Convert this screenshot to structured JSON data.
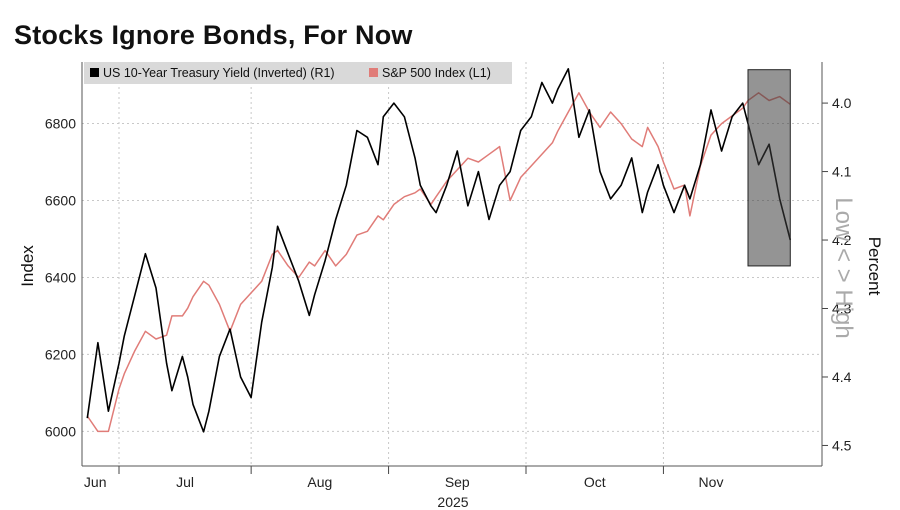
{
  "chart_data": {
    "type": "line",
    "title": "Stocks Ignore Bonds, For Now",
    "x_labels": [
      "Jun",
      "Jul",
      "Aug",
      "Sep",
      "Oct",
      "Nov"
    ],
    "x_year": "2025",
    "left_axis": {
      "label": "Index",
      "ticks": [
        6000,
        6200,
        6400,
        6600,
        6800
      ],
      "range": [
        5910,
        6960
      ]
    },
    "right_axis": {
      "label": "Percent",
      "ticks": [
        4.0,
        4.1,
        4.2,
        4.3,
        4.4,
        4.5
      ],
      "range": [
        3.94,
        4.53
      ],
      "inverted": true
    },
    "annotation": "Low < > High",
    "grid": true,
    "legend_position": "top-left",
    "highlight_box": {
      "x_range": [
        125,
        133
      ],
      "left_value_range": [
        6430,
        6940
      ]
    },
    "series": [
      {
        "name": "US 10-Year Treasury Yield (Inverted) (R1)",
        "color": "#000000",
        "axis": "right",
        "x": [
          0,
          2,
          4,
          6,
          7,
          9,
          11,
          13,
          15,
          16,
          18,
          19,
          20,
          22,
          23,
          25,
          27,
          29,
          31,
          33,
          35,
          36,
          38,
          40,
          42,
          43,
          45,
          47,
          49,
          51,
          53,
          55,
          56,
          58,
          60,
          62,
          63,
          65,
          66,
          68,
          70,
          72,
          74,
          76,
          78,
          80,
          82,
          84,
          86,
          88,
          89,
          91,
          93,
          95,
          97,
          99,
          101,
          103,
          105,
          106,
          108,
          109,
          111,
          113,
          114,
          116,
          118,
          120,
          122,
          124,
          125,
          127,
          129,
          131,
          133
        ],
        "y": [
          4.46,
          4.35,
          4.45,
          4.38,
          4.34,
          4.28,
          4.22,
          4.27,
          4.38,
          4.42,
          4.37,
          4.4,
          4.44,
          4.48,
          4.45,
          4.37,
          4.33,
          4.4,
          4.43,
          4.32,
          4.24,
          4.18,
          4.22,
          4.26,
          4.31,
          4.28,
          4.23,
          4.17,
          4.12,
          4.04,
          4.05,
          4.09,
          4.02,
          4.0,
          4.02,
          4.08,
          4.12,
          4.15,
          4.16,
          4.12,
          4.07,
          4.15,
          4.1,
          4.17,
          4.12,
          4.1,
          4.04,
          4.02,
          3.97,
          4.0,
          3.98,
          3.95,
          4.05,
          4.01,
          4.1,
          4.14,
          4.12,
          4.08,
          4.16,
          4.13,
          4.09,
          4.12,
          4.16,
          4.12,
          4.14,
          4.09,
          4.01,
          4.07,
          4.02,
          4.0,
          4.03,
          4.09,
          4.06,
          4.14,
          4.2
        ]
      },
      {
        "name": "S&P 500 Index (L1)",
        "color": "#e07c78",
        "axis": "left",
        "x": [
          0,
          2,
          4,
          6,
          7,
          9,
          11,
          13,
          15,
          16,
          18,
          19,
          20,
          22,
          23,
          25,
          27,
          29,
          31,
          33,
          35,
          36,
          38,
          40,
          42,
          43,
          45,
          47,
          49,
          51,
          53,
          55,
          56,
          58,
          60,
          62,
          63,
          65,
          66,
          68,
          70,
          72,
          74,
          76,
          78,
          80,
          82,
          84,
          86,
          88,
          89,
          91,
          93,
          95,
          97,
          99,
          101,
          103,
          105,
          106,
          108,
          109,
          111,
          113,
          114,
          116,
          118,
          120,
          122,
          124,
          125,
          127,
          129,
          131,
          133
        ],
        "y": [
          6040,
          6000,
          6000,
          6110,
          6150,
          6210,
          6260,
          6240,
          6250,
          6300,
          6300,
          6320,
          6350,
          6390,
          6380,
          6330,
          6260,
          6330,
          6360,
          6390,
          6460,
          6470,
          6430,
          6400,
          6440,
          6430,
          6470,
          6430,
          6460,
          6510,
          6520,
          6560,
          6550,
          6590,
          6610,
          6620,
          6630,
          6590,
          6610,
          6650,
          6680,
          6710,
          6700,
          6720,
          6740,
          6600,
          6660,
          6690,
          6720,
          6750,
          6780,
          6830,
          6880,
          6830,
          6790,
          6830,
          6800,
          6760,
          6740,
          6790,
          6740,
          6700,
          6630,
          6640,
          6560,
          6690,
          6770,
          6800,
          6820,
          6840,
          6860,
          6880,
          6860,
          6870,
          6850
        ]
      }
    ]
  }
}
